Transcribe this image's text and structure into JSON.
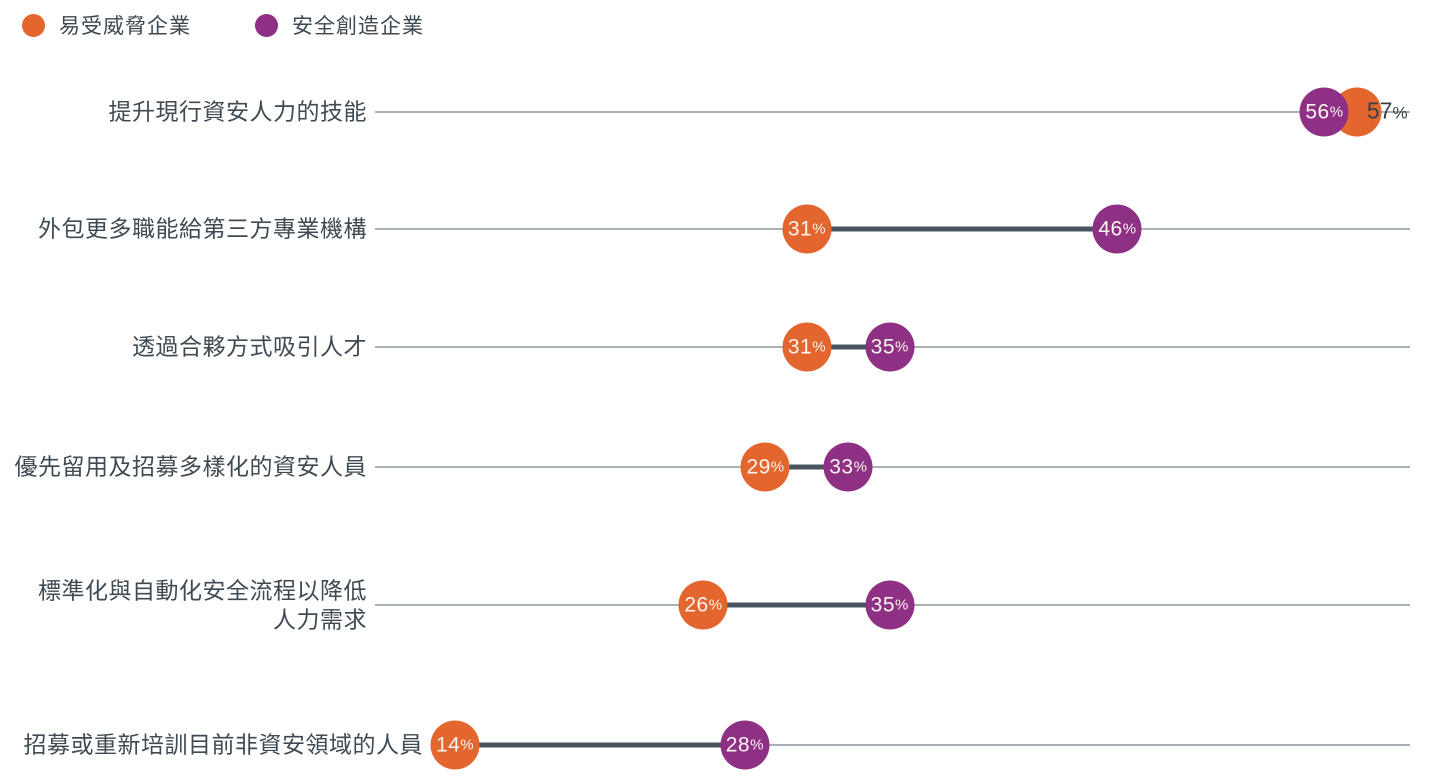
{
  "legend": {
    "items": [
      {
        "label": "易受威脅企業",
        "color": "#E2662E"
      },
      {
        "label": "安全創造企業",
        "color": "#8E3084"
      }
    ]
  },
  "chart_data": {
    "type": "dumbbell",
    "orientation": "horizontal",
    "title": "",
    "value_suffix": "%",
    "categories": [
      "提升現行資安人力的技能",
      "外包更多職能給第三方專業機構",
      "透過合夥方式吸引人才",
      "優先留用及招募多樣化的資安人員",
      "標準化與自動化安全流程以降低\n人力需求",
      "招募或重新培訓目前非資安領域的人員"
    ],
    "series": [
      {
        "name": "易受威脅企業",
        "color": "#E2662E",
        "values": [
          57,
          31,
          31,
          29,
          26,
          14
        ]
      },
      {
        "name": "安全創造企業",
        "color": "#8E3084",
        "values": [
          56,
          46,
          35,
          33,
          35,
          28
        ]
      }
    ],
    "xlim": [
      0,
      60
    ],
    "grid": false,
    "legend_position": "top-left"
  }
}
